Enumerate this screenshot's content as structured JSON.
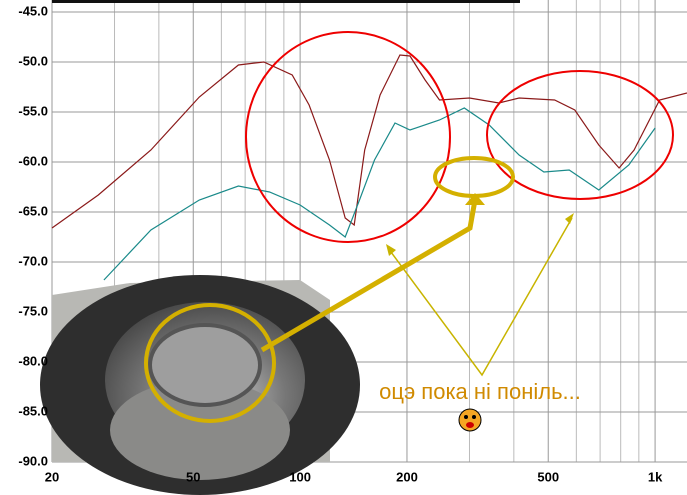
{
  "chart_data": {
    "type": "line",
    "xlim": [
      20,
      1230
    ],
    "ylim": [
      -90,
      -45
    ],
    "log_x": true,
    "grid": true,
    "xticks": [
      20,
      50,
      100,
      200,
      500,
      {
        "value": 1000,
        "label": "1k"
      }
    ],
    "xminor": [
      30,
      40,
      60,
      70,
      80,
      90,
      300,
      400,
      600,
      700,
      800,
      900
    ],
    "yticks": [
      {
        "value": -45,
        "label": "-45.0"
      },
      {
        "value": -50,
        "label": "-50.0"
      },
      {
        "value": -55,
        "label": "-55.0"
      },
      {
        "value": -60,
        "label": "-60.0"
      },
      {
        "value": -65,
        "label": "-65.0"
      },
      {
        "value": -70,
        "label": "-70.0"
      },
      {
        "value": -75,
        "label": "-75.0"
      },
      {
        "value": -80,
        "label": "-80.0"
      },
      {
        "value": -85,
        "label": "-85.0"
      },
      {
        "value": -90,
        "label": "-90.0"
      }
    ],
    "series": [
      {
        "color": "#8b1a1a",
        "x": [
          20,
          27,
          38,
          52,
          67,
          79,
          95,
          106,
          121,
          134,
          142,
          152,
          168,
          191,
          204,
          225,
          247,
          300,
          363,
          414,
          521,
          594,
          694,
          792,
          873,
          1030,
          1230
        ],
        "values": [
          -66.6,
          -63.3,
          -58.8,
          -53.5,
          -50.3,
          -50.0,
          -51.3,
          -54.3,
          -59.8,
          -65.6,
          -66.3,
          -58.8,
          -53.3,
          -49.3,
          -49.4,
          -51.8,
          -53.8,
          -53.6,
          -54.1,
          -53.6,
          -53.8,
          -54.8,
          -58.3,
          -60.6,
          -58.8,
          -53.8,
          -53.1
        ]
      },
      {
        "color": "#1a8a8a",
        "x": [
          28,
          38,
          52,
          67,
          82,
          100,
          121,
          134,
          147,
          162,
          185,
          204,
          247,
          290,
          341,
          414,
          486,
          573,
          694,
          843,
          1000
        ],
        "values": [
          -71.8,
          -66.8,
          -63.8,
          -62.4,
          -63.0,
          -64.3,
          -66.3,
          -67.5,
          -63.8,
          -59.8,
          -56.1,
          -56.8,
          -55.8,
          -54.6,
          -56.3,
          -59.3,
          -61.0,
          -60.8,
          -62.8,
          -60.3,
          -56.6
        ]
      }
    ],
    "annotation": "оцэ пока ні поніль..."
  }
}
